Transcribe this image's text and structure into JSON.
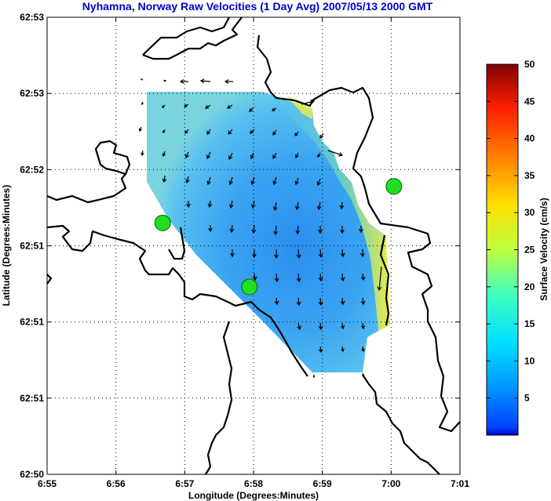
{
  "title": "Nyhamna, Norway Raw Velocities (1 Day Avg) 2007/05/13 2000 GMT",
  "chart_data": {
    "type": "heatmap",
    "title": "Nyhamna, Norway Raw Velocities (1 Day Avg) 2007/05/13 2000 GMT",
    "xlabel": "Longitude (Degrees:Minutes)",
    "ylabel": "Latitude (Degrees:Minutes)",
    "x_tick_labels": [
      "6:55",
      "6:56",
      "6:57",
      "6:58",
      "6:59",
      "7:00",
      "7:01"
    ],
    "y_tick_labels": [
      "62:53",
      "62:53",
      "62:52",
      "62:51",
      "62:51",
      "62:51",
      "62:50"
    ],
    "grid": true,
    "colorbar": {
      "label": "Surface Velocity (cm/s)",
      "range": [
        0,
        50
      ],
      "tick_labels": [
        "5",
        "10",
        "15",
        "20",
        "25",
        "30",
        "35",
        "40",
        "45",
        "50"
      ],
      "colormap": "jet"
    },
    "sites": [
      {
        "x": 0.28,
        "y": 0.55
      },
      {
        "x": 0.49,
        "y": 0.41
      },
      {
        "x": 0.84,
        "y": 0.63
      }
    ],
    "speed_range_shown_cm_s": [
      3,
      25
    ]
  }
}
